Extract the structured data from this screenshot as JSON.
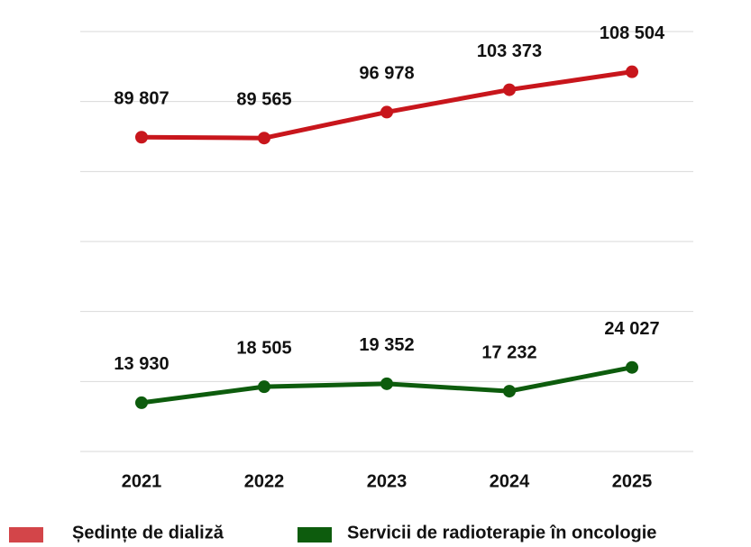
{
  "chart_data": {
    "type": "line",
    "categories": [
      "2021",
      "2022",
      "2023",
      "2024",
      "2025"
    ],
    "series": [
      {
        "name": "Ședințe de dializă",
        "color": "#c8161c",
        "values": [
          89807,
          89565,
          96978,
          103373,
          108504
        ],
        "value_labels": [
          "89 807",
          "89 565",
          "96 978",
          "103 373",
          "108 504"
        ]
      },
      {
        "name": "Servicii de radioterapie în oncologie",
        "color": "#0d5c0d",
        "values": [
          13930,
          18505,
          19352,
          17232,
          24027
        ],
        "value_labels": [
          "13 930",
          "18 505",
          "19 352",
          "17 232",
          "24 027"
        ]
      }
    ],
    "ylim": [
      0,
      120000
    ],
    "yticks": [
      0,
      20000,
      40000,
      60000,
      80000,
      100000,
      120000
    ],
    "grid": true,
    "legend": "bottom"
  }
}
